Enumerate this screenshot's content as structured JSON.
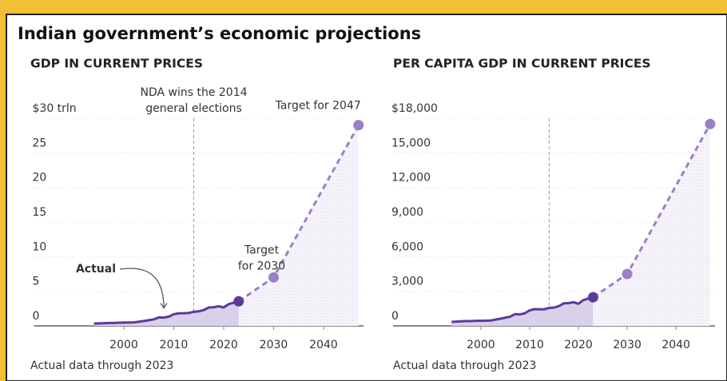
{
  "title": "Indian government’s economic projections",
  "chart_data": [
    {
      "type": "line",
      "title": "GDP IN CURRENT PRICES",
      "note": "Actual data through 2023",
      "event_x": 2014,
      "event_label": [
        "NDA wins the 2014",
        "general elections"
      ],
      "xlim": [
        1982,
        2048
      ],
      "xticks": [
        2000,
        2010,
        2020,
        2030,
        2040
      ],
      "ylim": [
        0,
        30
      ],
      "yticks": [
        0,
        5,
        10,
        15,
        20,
        {
          "value": 25,
          "label": "25"
        },
        {
          "value": 30,
          "label": "$30 trln"
        }
      ],
      "series": [
        {
          "name": "Actual",
          "color": "#5b3a99",
          "x": [
            1994,
            1995,
            1996,
            1997,
            1998,
            1999,
            2000,
            2001,
            2002,
            2003,
            2004,
            2005,
            2006,
            2007,
            2008,
            2009,
            2010,
            2011,
            2012,
            2013,
            2014,
            2015,
            2016,
            2017,
            2018,
            2019,
            2020,
            2021,
            2022,
            2023
          ],
          "values": [
            0.33,
            0.36,
            0.39,
            0.42,
            0.42,
            0.46,
            0.47,
            0.49,
            0.51,
            0.61,
            0.71,
            0.82,
            0.94,
            1.22,
            1.2,
            1.34,
            1.68,
            1.82,
            1.83,
            1.86,
            2.04,
            2.1,
            2.29,
            2.65,
            2.7,
            2.84,
            2.67,
            3.15,
            3.35,
            3.55
          ]
        },
        {
          "color": "#9b7fc7",
          "x": [
            2030,
            2047
          ],
          "values": [
            7,
            29
          ],
          "point_labels": [
            [
              "Target",
              "for 2030"
            ],
            [
              "Target for 2047"
            ]
          ]
        }
      ]
    },
    {
      "type": "line",
      "title": "PER CAPITA GDP IN CURRENT PRICES",
      "note": "Actual data through 2023",
      "event_x": 2014,
      "xlim": [
        1982,
        2048
      ],
      "xticks": [
        2000,
        2010,
        2020,
        2030,
        2040
      ],
      "ylim": [
        0,
        18000
      ],
      "yticks": [
        0,
        {
          "value": 3000,
          "label": "3,000"
        },
        {
          "value": 6000,
          "label": "6,000"
        },
        {
          "value": 9000,
          "label": "9,000"
        },
        {
          "value": 12000,
          "label": "12,000"
        },
        {
          "value": 15000,
          "label": "15,000"
        },
        {
          "value": 18000,
          "label": "$18,000"
        }
      ],
      "series": [
        {
          "color": "#5b3a99",
          "x": [
            1994,
            1995,
            1996,
            1997,
            1998,
            1999,
            2000,
            2001,
            2002,
            2003,
            2004,
            2005,
            2006,
            2007,
            2008,
            2009,
            2010,
            2011,
            2012,
            2013,
            2014,
            2015,
            2016,
            2017,
            2018,
            2019,
            2020,
            2021,
            2022,
            2023
          ],
          "values": [
            350,
            375,
            400,
            415,
            413,
            441,
            443,
            452,
            471,
            546,
            624,
            710,
            800,
            1023,
            993,
            1090,
            1351,
            1450,
            1434,
            1438,
            1560,
            1590,
            1714,
            1958,
            1974,
            2050,
            1913,
            2238,
            2366,
            2480
          ]
        },
        {
          "color": "#9b7fc7",
          "x": [
            2030,
            2047
          ],
          "values": [
            4500,
            17500
          ]
        }
      ]
    }
  ]
}
